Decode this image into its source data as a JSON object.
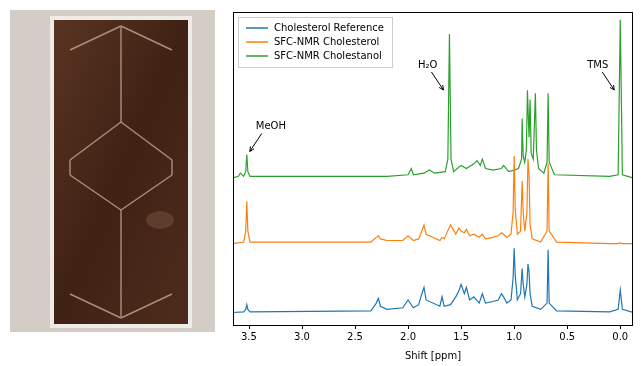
{
  "chart_data": {
    "type": "line",
    "x_label": "Shift [ppm]",
    "xlim": [
      3.65,
      -0.12
    ],
    "xticks": [
      3.5,
      {
        "value": 3,
        "label": "3.0"
      },
      2.5,
      {
        "value": 2,
        "label": "2.0"
      },
      1.5,
      {
        "value": 1,
        "label": "1.0"
      },
      0.5,
      {
        "value": 0,
        "label": "0.0"
      }
    ],
    "ylim": [
      0,
      10
    ],
    "tick_labels": "x",
    "grid": false,
    "legend": "upper left",
    "series": [
      {
        "name": "Cholesterol Reference",
        "color": "#1f77b4",
        "x": [
          3.65,
          3.55,
          3.53,
          3.52,
          3.51,
          3.49,
          2.35,
          2.3,
          2.28,
          2.26,
          2.2,
          2.05,
          2.0,
          1.95,
          1.9,
          1.87,
          1.85,
          1.83,
          1.7,
          1.68,
          1.66,
          1.6,
          1.55,
          1.52,
          1.5,
          1.47,
          1.45,
          1.42,
          1.38,
          1.33,
          1.3,
          1.27,
          1.2,
          1.15,
          1.12,
          1.1,
          1.07,
          1.03,
          1.01,
          1.0,
          0.99,
          0.97,
          0.94,
          0.925,
          0.915,
          0.9,
          0.88,
          0.87,
          0.86,
          0.85,
          0.83,
          0.75,
          0.69,
          0.68,
          0.67,
          0.6,
          0.1,
          0.02,
          0.0,
          -0.02,
          -0.12
        ],
        "values": [
          0.4,
          0.42,
          0.5,
          0.65,
          0.5,
          0.42,
          0.45,
          0.7,
          0.85,
          0.6,
          0.5,
          0.55,
          0.8,
          0.55,
          0.65,
          1.0,
          1.2,
          0.8,
          0.6,
          0.9,
          0.6,
          0.65,
          0.9,
          1.1,
          1.3,
          1.0,
          1.2,
          0.8,
          0.9,
          0.7,
          1.0,
          0.7,
          0.75,
          0.8,
          1.0,
          0.9,
          0.7,
          0.8,
          1.5,
          2.45,
          1.6,
          0.8,
          1.0,
          1.8,
          1.3,
          0.9,
          1.3,
          1.95,
          1.7,
          1.0,
          0.6,
          0.5,
          0.7,
          2.4,
          0.7,
          0.45,
          0.42,
          0.5,
          1.12,
          0.5,
          0.4
        ]
      },
      {
        "name": "SFC-NMR Cholesterol",
        "color": "#ff7f0e",
        "x": [
          3.65,
          3.55,
          3.53,
          3.52,
          3.51,
          3.49,
          2.35,
          2.3,
          2.28,
          2.26,
          2.2,
          2.05,
          2.0,
          1.95,
          1.9,
          1.87,
          1.85,
          1.83,
          1.7,
          1.68,
          1.66,
          1.6,
          1.55,
          1.52,
          1.5,
          1.47,
          1.45,
          1.42,
          1.38,
          1.33,
          1.3,
          1.27,
          1.2,
          1.15,
          1.12,
          1.1,
          1.07,
          1.03,
          1.01,
          1.0,
          0.99,
          0.97,
          0.94,
          0.925,
          0.915,
          0.9,
          0.88,
          0.87,
          0.86,
          0.85,
          0.83,
          0.75,
          0.69,
          0.68,
          0.67,
          0.6,
          0.1,
          0.02,
          0.0,
          -0.02,
          -0.12
        ],
        "values": [
          2.6,
          2.65,
          3.0,
          3.95,
          3.0,
          2.65,
          2.65,
          2.8,
          2.85,
          2.75,
          2.7,
          2.7,
          2.85,
          2.7,
          2.75,
          3.0,
          3.2,
          2.9,
          2.7,
          2.8,
          2.75,
          3.2,
          2.9,
          3.1,
          3.0,
          2.95,
          3.05,
          2.85,
          2.9,
          2.8,
          2.9,
          2.75,
          2.8,
          2.85,
          2.95,
          2.9,
          2.8,
          2.9,
          3.6,
          5.4,
          3.7,
          2.9,
          3.0,
          4.6,
          3.6,
          3.0,
          3.6,
          5.3,
          4.8,
          3.2,
          2.75,
          2.65,
          3.0,
          5.15,
          3.0,
          2.65,
          2.6,
          2.6,
          2.62,
          2.6,
          2.6
        ]
      },
      {
        "name": "SFC-NMR Cholestanol",
        "color": "#2ca02c",
        "x": [
          3.65,
          3.6,
          3.58,
          3.55,
          3.53,
          3.52,
          3.51,
          3.49,
          2.2,
          2.0,
          1.97,
          1.95,
          1.85,
          1.8,
          1.75,
          1.65,
          1.625,
          1.61,
          1.595,
          1.57,
          1.52,
          1.5,
          1.45,
          1.38,
          1.35,
          1.32,
          1.3,
          1.27,
          1.2,
          1.12,
          1.1,
          1.05,
          1.0,
          0.96,
          0.93,
          0.925,
          0.915,
          0.9,
          0.885,
          0.875,
          0.86,
          0.85,
          0.84,
          0.82,
          0.8,
          0.79,
          0.77,
          0.72,
          0.69,
          0.68,
          0.67,
          0.62,
          0.1,
          0.02,
          0.0,
          -0.02,
          -0.12
        ],
        "values": [
          4.7,
          4.75,
          4.85,
          4.75,
          4.9,
          5.45,
          4.9,
          4.75,
          4.75,
          4.8,
          5.0,
          4.8,
          4.85,
          4.95,
          4.85,
          4.9,
          5.3,
          9.3,
          5.3,
          4.9,
          5.05,
          5.1,
          5.0,
          5.15,
          5.25,
          5.1,
          5.3,
          5.0,
          4.95,
          5.0,
          5.1,
          4.9,
          4.95,
          5.0,
          5.3,
          6.6,
          5.4,
          5.2,
          5.6,
          7.5,
          6.0,
          7.2,
          5.5,
          5.3,
          7.4,
          5.6,
          5.0,
          4.85,
          5.2,
          7.4,
          5.2,
          4.8,
          4.75,
          4.8,
          9.75,
          4.8,
          4.7
        ]
      }
    ],
    "annotations": [
      {
        "text": "MeOH",
        "x": 3.52,
        "series": "SFC-NMR Cholestanol"
      },
      {
        "text": "H₂O",
        "x": 1.61,
        "series": "SFC-NMR Cholestanol"
      },
      {
        "text": "TMS",
        "x": 0.0,
        "series": "SFC-NMR Cholestanol"
      }
    ]
  }
}
